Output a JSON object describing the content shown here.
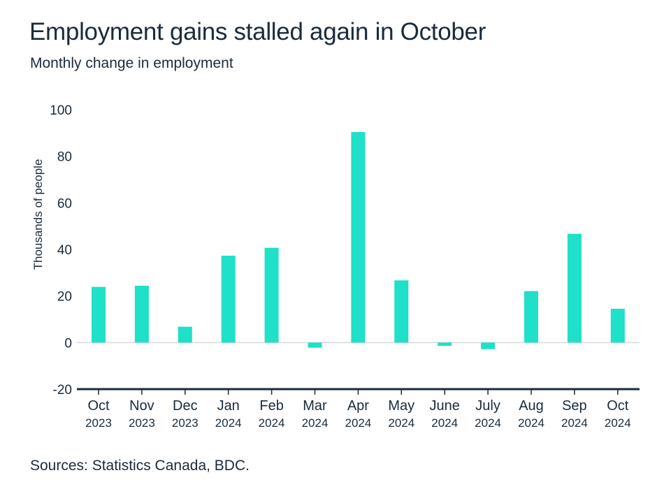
{
  "title": "Employment gains stalled again in October",
  "subtitle": "Monthly change in employment",
  "source": "Sources: Statistics Canada, BDC.",
  "colors": {
    "bar": "#1fe0c8",
    "axis": "#1b2b3a",
    "zero_line": "#d4d8dc",
    "text": "#1b2b3a"
  },
  "chart_data": {
    "type": "bar",
    "title": "Employment gains stalled again in October",
    "subtitle": "Monthly change in employment",
    "xlabel": "",
    "ylabel": "Thousands of people",
    "ylim": [
      -20,
      100
    ],
    "yticks": [
      100,
      80,
      60,
      40,
      20,
      0,
      -20
    ],
    "grid": false,
    "categories": [
      {
        "month": "Oct",
        "year": "2023"
      },
      {
        "month": "Nov",
        "year": "2023"
      },
      {
        "month": "Dec",
        "year": "2023"
      },
      {
        "month": "Jan",
        "year": "2024"
      },
      {
        "month": "Feb",
        "year": "2024"
      },
      {
        "month": "Mar",
        "year": "2024"
      },
      {
        "month": "Apr",
        "year": "2024"
      },
      {
        "month": "May",
        "year": "2024"
      },
      {
        "month": "June",
        "year": "2024"
      },
      {
        "month": "July",
        "year": "2024"
      },
      {
        "month": "Aug",
        "year": "2024"
      },
      {
        "month": "Sep",
        "year": "2024"
      },
      {
        "month": "Oct",
        "year": "2024"
      }
    ],
    "values": [
      23.9,
      24.4,
      6.8,
      37.3,
      40.7,
      -2.2,
      90.4,
      26.7,
      -1.4,
      -2.8,
      22.1,
      46.7,
      14.5
    ]
  }
}
